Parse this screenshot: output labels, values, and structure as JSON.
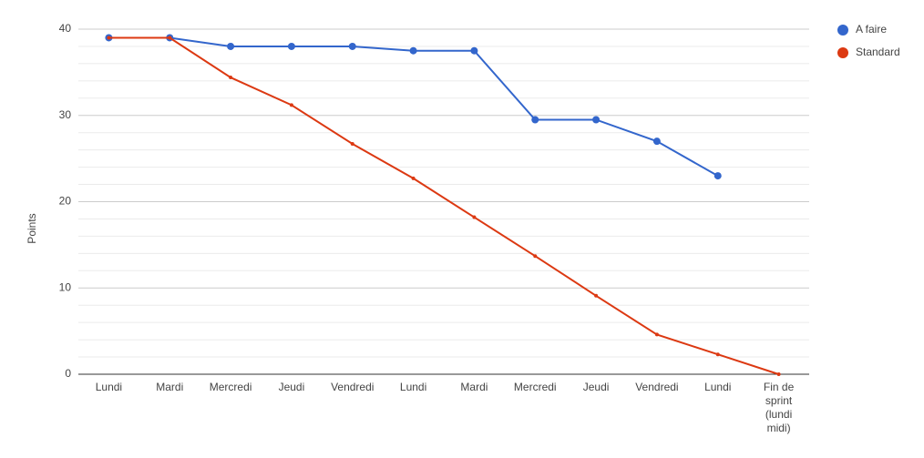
{
  "chart_data": {
    "type": "line",
    "y_label": "Points",
    "categories": [
      "Lundi",
      "Mardi",
      "Mercredi",
      "Jeudi",
      "Vendredi",
      "Lundi",
      "Mardi",
      "Mercredi",
      "Jeudi",
      "Vendredi",
      "Lundi",
      "Fin de sprint (lundi midi)"
    ],
    "series": [
      {
        "name": "A faire",
        "color": "#3366cc",
        "values": [
          39,
          39,
          38,
          38,
          38,
          37.5,
          37.5,
          29.5,
          29.5,
          27,
          23,
          null
        ]
      },
      {
        "name": "Standard",
        "color": "#dc3912",
        "values": [
          39,
          39,
          34.4,
          31.2,
          26.7,
          22.7,
          18.2,
          13.7,
          9.1,
          4.6,
          2.3,
          0
        ]
      }
    ],
    "ylim": [
      0,
      40
    ],
    "yticks": [
      0,
      10,
      20,
      30,
      40
    ],
    "minor_yticks": [
      2,
      4,
      6,
      8,
      12,
      14,
      16,
      18,
      22,
      24,
      26,
      28,
      32,
      34,
      36,
      38
    ],
    "grid": true,
    "legend": "right"
  }
}
